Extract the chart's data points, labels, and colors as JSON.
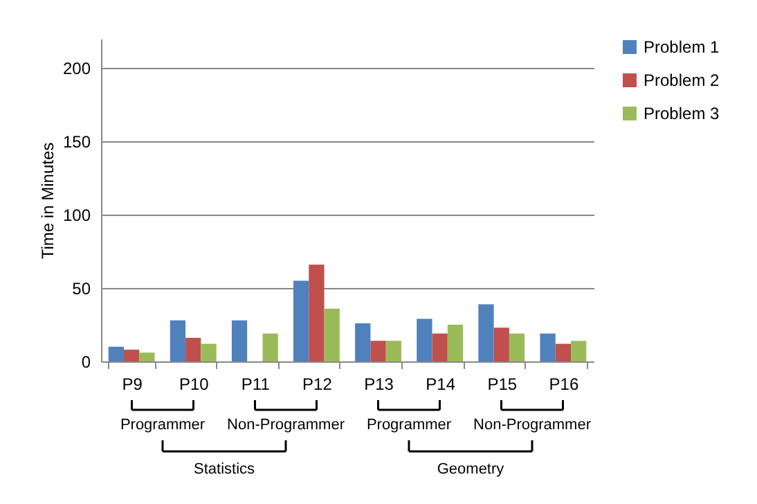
{
  "chart_data": {
    "type": "bar",
    "ylabel": "Time in Minutes",
    "categories": [
      "P9",
      "P10",
      "P11",
      "P12",
      "P13",
      "P14",
      "P15",
      "P16"
    ],
    "series": [
      {
        "name": "Problem 1",
        "color": "#4f81bd",
        "values": [
          10,
          28,
          28,
          55,
          26,
          29,
          39,
          19
        ]
      },
      {
        "name": "Problem 2",
        "color": "#c0504d",
        "values": [
          8,
          16,
          0,
          66,
          14,
          19,
          23,
          12
        ]
      },
      {
        "name": "Problem 3",
        "color": "#9bbb59",
        "values": [
          6,
          12,
          19,
          36,
          14,
          25,
          19,
          14
        ]
      }
    ],
    "ylim": [
      0,
      220
    ],
    "yticks": [
      0,
      50,
      100,
      150,
      200
    ],
    "grid": "y",
    "legend": "right",
    "annotations": [
      "Programmer",
      "Non-Programmer",
      "Programmer",
      "Non-Programmer",
      "Statistics",
      "Geometry"
    ]
  }
}
